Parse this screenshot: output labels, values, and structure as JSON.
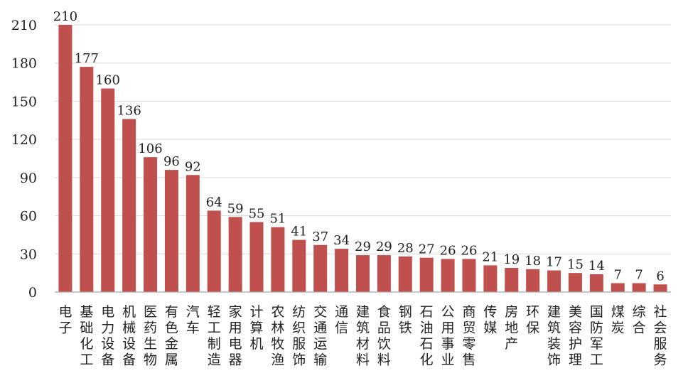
{
  "chart_data": {
    "type": "bar",
    "categories": [
      "电子",
      "基础化工",
      "电力设备",
      "机械设备",
      "医药生物",
      "有色金属",
      "汽车",
      "轻工制造",
      "家用电器",
      "计算机",
      "农林牧渔",
      "纺织服饰",
      "交通运输",
      "通信",
      "建筑材料",
      "食品饮料",
      "钢铁",
      "石油石化",
      "公用事业",
      "商贸零售",
      "传媒",
      "房地产",
      "环保",
      "建筑装饰",
      "美容护理",
      "国防军工",
      "煤炭",
      "综合",
      "社会服务"
    ],
    "values": [
      210,
      177,
      160,
      136,
      106,
      96,
      92,
      64,
      59,
      55,
      51,
      41,
      37,
      34,
      29,
      29,
      28,
      27,
      26,
      26,
      21,
      19,
      18,
      17,
      15,
      14,
      7,
      7,
      6
    ],
    "data_labels": [
      "210",
      "177",
      "160",
      "136",
      "106",
      "96",
      "92",
      "64",
      "59",
      "55",
      "51",
      "41",
      "37",
      "34",
      "29",
      "29",
      "28",
      "27",
      "26",
      "26",
      "21",
      "19",
      "18",
      "17",
      "15",
      "14",
      "7",
      "7",
      "6"
    ],
    "yticks": [
      "0",
      "30",
      "60",
      "90",
      "120",
      "150",
      "180",
      "210"
    ],
    "ytick_values": [
      0,
      30,
      60,
      90,
      120,
      150,
      180,
      210
    ],
    "ylim": [
      0,
      210
    ],
    "grid": true,
    "legend": "none",
    "bar_color": "#C0504D",
    "grid_color": "#D9D9D9",
    "axis_color": "#A6A6A6",
    "text_color": "#222222"
  }
}
